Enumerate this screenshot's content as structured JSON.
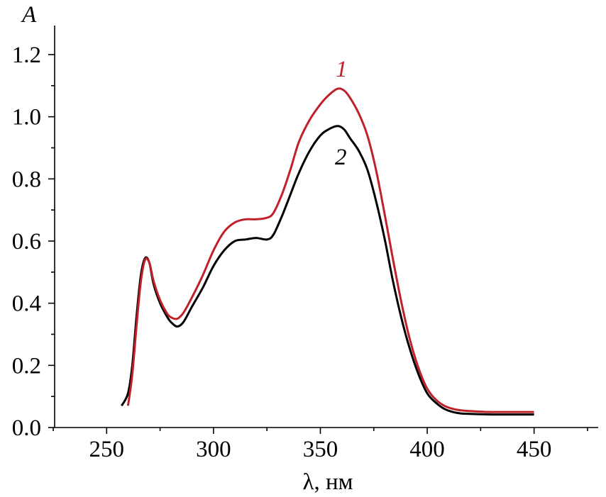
{
  "chart_data": {
    "type": "line",
    "title": "",
    "xlabel": "λ, нм",
    "ylabel": "A",
    "xlim": [
      225,
      480
    ],
    "ylim": [
      0,
      1.2
    ],
    "xticks": [
      250,
      300,
      350,
      400,
      450
    ],
    "xtick_labels": [
      "250",
      "300",
      "350",
      "400",
      "450"
    ],
    "yticks": [
      0.0,
      0.2,
      0.4,
      0.6,
      0.8,
      1.0,
      1.2
    ],
    "ytick_labels": [
      "0.0",
      "0.2",
      "0.4",
      "0.6",
      "0.8",
      "1.0",
      "1.2"
    ],
    "grid": false,
    "series": [
      {
        "label": "1",
        "color": "#c0202a",
        "x": [
          260,
          262,
          264,
          266,
          268,
          270,
          272,
          275,
          278,
          280,
          283,
          286,
          290,
          295,
          300,
          305,
          310,
          315,
          320,
          325,
          328,
          332,
          336,
          340,
          345,
          350,
          354,
          358,
          361,
          364,
          368,
          372,
          376,
          380,
          384,
          388,
          392,
          396,
          400,
          404,
          408,
          412,
          416,
          420,
          425,
          430,
          440,
          450
        ],
        "y": [
          0.07,
          0.17,
          0.33,
          0.47,
          0.54,
          0.53,
          0.47,
          0.41,
          0.37,
          0.355,
          0.35,
          0.37,
          0.42,
          0.49,
          0.57,
          0.63,
          0.66,
          0.67,
          0.67,
          0.675,
          0.69,
          0.75,
          0.83,
          0.92,
          0.99,
          1.04,
          1.07,
          1.09,
          1.085,
          1.06,
          1.01,
          0.94,
          0.83,
          0.69,
          0.54,
          0.4,
          0.28,
          0.19,
          0.125,
          0.09,
          0.07,
          0.06,
          0.055,
          0.053,
          0.051,
          0.05,
          0.05,
          0.05
        ]
      },
      {
        "label": "2",
        "color": "#000000",
        "x": [
          257,
          260,
          262,
          264,
          266,
          268,
          270,
          272,
          275,
          278,
          280,
          283,
          286,
          290,
          295,
          300,
          305,
          310,
          315,
          320,
          325,
          328,
          332,
          336,
          340,
          345,
          350,
          354,
          358,
          361,
          364,
          368,
          372,
          376,
          380,
          384,
          388,
          392,
          396,
          400,
          404,
          408,
          412,
          416,
          420,
          425,
          430,
          440,
          450
        ],
        "y": [
          0.07,
          0.11,
          0.2,
          0.36,
          0.49,
          0.545,
          0.53,
          0.46,
          0.4,
          0.36,
          0.34,
          0.325,
          0.34,
          0.39,
          0.45,
          0.52,
          0.57,
          0.6,
          0.605,
          0.61,
          0.605,
          0.62,
          0.68,
          0.75,
          0.82,
          0.89,
          0.94,
          0.96,
          0.97,
          0.96,
          0.93,
          0.89,
          0.83,
          0.73,
          0.61,
          0.47,
          0.35,
          0.25,
          0.17,
          0.11,
          0.08,
          0.06,
          0.05,
          0.045,
          0.044,
          0.043,
          0.042,
          0.042,
          0.042
        ]
      }
    ]
  }
}
